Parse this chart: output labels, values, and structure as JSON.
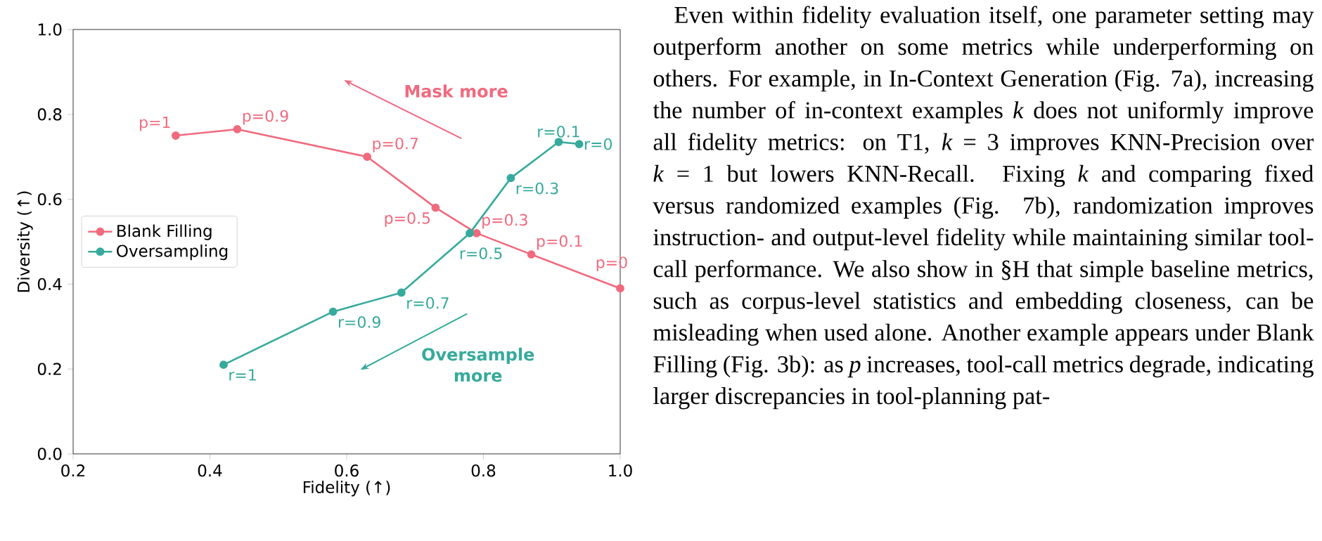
{
  "chart_data": {
    "type": "line",
    "xlabel": "Fidelity (↑)",
    "ylabel": "Diversity (↑)",
    "xlim": [
      0.2,
      1.0
    ],
    "xticks": [
      0.2,
      0.4,
      0.6,
      0.8,
      {
        "value": 1.0,
        "label": "1.0"
      }
    ],
    "ylim": [
      0.0,
      1.0
    ],
    "yticks": [
      {
        "value": 0.0,
        "label": "0.0"
      },
      0.2,
      0.4,
      0.6,
      0.8,
      {
        "value": 1.0,
        "label": "1.0"
      }
    ],
    "legend": "left",
    "marker": "circle",
    "line_style": "solid",
    "series": [
      {
        "name": "Blank Filling",
        "color": "#f06a7e",
        "x": [
          0.35,
          0.44,
          0.63,
          0.73,
          0.79,
          0.87,
          1.0
        ],
        "values": [
          0.75,
          0.765,
          0.7,
          0.58,
          0.52,
          0.47,
          0.39
        ]
      },
      {
        "name": "Oversampling",
        "color": "#36aa9c",
        "x": [
          0.42,
          0.58,
          0.68,
          0.78,
          0.84,
          0.91,
          0.94
        ],
        "values": [
          0.21,
          0.335,
          0.38,
          0.52,
          0.65,
          0.735,
          0.73
        ]
      }
    ],
    "annotations": [
      {
        "text": "p=1",
        "x": 0.35,
        "y": 0.75
      },
      {
        "text": "p=0.9",
        "x": 0.44,
        "y": 0.765
      },
      {
        "text": "p=0.7",
        "x": 0.63,
        "y": 0.7
      },
      {
        "text": "p=0.5",
        "x": 0.73,
        "y": 0.58
      },
      {
        "text": "p=0.3",
        "x": 0.79,
        "y": 0.52
      },
      {
        "text": "p=0.1",
        "x": 0.87,
        "y": 0.47
      },
      {
        "text": "p=0",
        "x": 1.0,
        "y": 0.39
      },
      {
        "text": "r=1",
        "x": 0.42,
        "y": 0.21
      },
      {
        "text": "r=0.9",
        "x": 0.58,
        "y": 0.335
      },
      {
        "text": "r=0.7",
        "x": 0.68,
        "y": 0.38
      },
      {
        "text": "r=0.5",
        "x": 0.78,
        "y": 0.52
      },
      {
        "text": "r=0.3",
        "x": 0.84,
        "y": 0.65
      },
      {
        "text": "r=0.1",
        "x": 0.91,
        "y": 0.735
      },
      {
        "text": "r=0",
        "x": 0.94,
        "y": 0.73
      },
      "Mask more",
      "Oversample more",
      "Even within fidelity evaluation itself, one parameter setting may outperform another on some metrics while underperforming on others. For example, in In-Context Generation (Fig. 7a), increasing the number of in-context examples *k* does not uniformly improve all fidelity metrics: on T1, *k* = 3 improves KNN-Precision over *k* = 1 but lowers KNN-Recall. Fixing *k* and comparing fixed versus randomized examples (Fig. 7b), randomization improves instruction- and output-level fidelity while maintaining similar tool-call performance. We also show in §H that simple baseline metrics, such as corpus-level statistics and embedding closeness, can be misleading when used alone. Another example appears under Blank Filling (Fig. 3b): as *p* increases, tool-call metrics degrade, indicating larger discrepancies in tool-planning pat-"
    ]
  }
}
